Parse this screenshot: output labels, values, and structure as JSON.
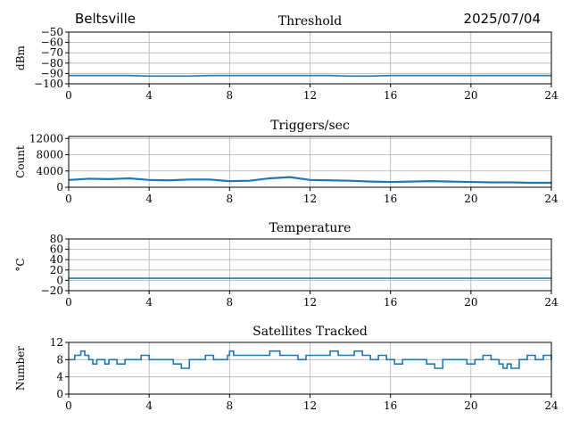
{
  "header": {
    "location": "Beltsville",
    "date": "2025/07/04"
  },
  "colors": {
    "line": "#1f77b4",
    "grid": "#b0b0b0",
    "axis": "#000000"
  },
  "chart_data": [
    {
      "type": "line",
      "title": "Threshold",
      "xlabel": "",
      "ylabel": "dBm",
      "xlim": [
        0,
        24
      ],
      "ylim": [
        -100,
        -50
      ],
      "xticks": [
        0,
        4,
        8,
        12,
        16,
        20,
        24
      ],
      "yticks": [
        -100,
        -90,
        -80,
        -70,
        -60,
        -50
      ],
      "grid": true,
      "series": [
        {
          "x": [
            0,
            1,
            2,
            3,
            4,
            5,
            6,
            7,
            8,
            9,
            10,
            11,
            12,
            13,
            14,
            15,
            16,
            17,
            18,
            19,
            20,
            21,
            22,
            23,
            24
          ],
          "y": [
            -92,
            -92,
            -92,
            -92,
            -92.5,
            -92.5,
            -92.5,
            -92,
            -92,
            -92,
            -92,
            -92,
            -92,
            -92,
            -92.5,
            -92.5,
            -92,
            -92,
            -92,
            -92,
            -92,
            -92,
            -92,
            -92,
            -92
          ]
        }
      ]
    },
    {
      "type": "line",
      "title": "Triggers/sec",
      "xlabel": "",
      "ylabel": "Count",
      "xlim": [
        0,
        24
      ],
      "ylim": [
        0,
        12500
      ],
      "xticks": [
        0,
        4,
        8,
        12,
        16,
        20,
        24
      ],
      "yticks": [
        0,
        4000,
        8000,
        12000
      ],
      "grid": true,
      "series": [
        {
          "x": [
            0,
            1,
            2,
            3,
            4,
            5,
            6,
            7,
            8,
            9,
            10,
            11,
            12,
            13,
            14,
            15,
            16,
            17,
            18,
            19,
            20,
            21,
            22,
            23,
            24
          ],
          "y": [
            1800,
            2100,
            2000,
            2200,
            1800,
            1700,
            1900,
            1900,
            1500,
            1600,
            2200,
            2500,
            1800,
            1700,
            1600,
            1400,
            1300,
            1400,
            1500,
            1400,
            1300,
            1200,
            1200,
            1100,
            1100
          ]
        }
      ]
    },
    {
      "type": "line",
      "title": "Temperature",
      "xlabel": "",
      "ylabel": "°C",
      "xlim": [
        0,
        24
      ],
      "ylim": [
        -20,
        80
      ],
      "xticks": [
        0,
        4,
        8,
        12,
        16,
        20,
        24
      ],
      "yticks": [
        -20,
        0,
        20,
        40,
        60,
        80
      ],
      "grid": true,
      "series": [
        {
          "x": [
            0,
            24
          ],
          "y": [
            4,
            4
          ]
        }
      ]
    },
    {
      "type": "line",
      "title": "Satellites Tracked",
      "xlabel": "",
      "ylabel": "Number",
      "xlim": [
        0,
        24
      ],
      "ylim": [
        0,
        12
      ],
      "xticks": [
        0,
        4,
        8,
        12,
        16,
        20,
        24
      ],
      "yticks": [
        0,
        4,
        8,
        12
      ],
      "grid": true,
      "series": [
        {
          "x": [
            0,
            0.3,
            0.6,
            0.8,
            1.0,
            1.2,
            1.4,
            1.6,
            1.8,
            2.0,
            2.4,
            2.8,
            3.2,
            3.6,
            4.0,
            4.4,
            4.8,
            5.2,
            5.6,
            6.0,
            6.4,
            6.8,
            7.2,
            7.6,
            7.9,
            8.0,
            8.2,
            8.5,
            9.0,
            9.5,
            10.0,
            10.5,
            11.0,
            11.4,
            11.8,
            12.0,
            12.4,
            12.8,
            13.0,
            13.4,
            13.8,
            14.2,
            14.6,
            15.0,
            15.4,
            15.8,
            16.2,
            16.6,
            17.0,
            17.4,
            17.8,
            18.2,
            18.6,
            19.0,
            19.4,
            19.8,
            20.2,
            20.6,
            21.0,
            21.4,
            21.6,
            21.8,
            22.0,
            22.4,
            22.8,
            23.2,
            23.6,
            24.0
          ],
          "y": [
            8,
            9,
            10,
            9,
            8,
            7,
            8,
            8,
            7,
            8,
            7,
            8,
            8,
            9,
            8,
            8,
            8,
            7,
            6,
            8,
            8,
            9,
            8,
            8,
            9,
            10,
            9,
            9,
            9,
            9,
            10,
            9,
            9,
            8,
            9,
            9,
            9,
            9,
            10,
            9,
            9,
            10,
            9,
            8,
            9,
            8,
            7,
            8,
            8,
            8,
            7,
            6,
            8,
            8,
            8,
            7,
            8,
            9,
            8,
            7,
            6,
            7,
            6,
            8,
            9,
            8,
            9,
            8
          ]
        }
      ]
    }
  ]
}
